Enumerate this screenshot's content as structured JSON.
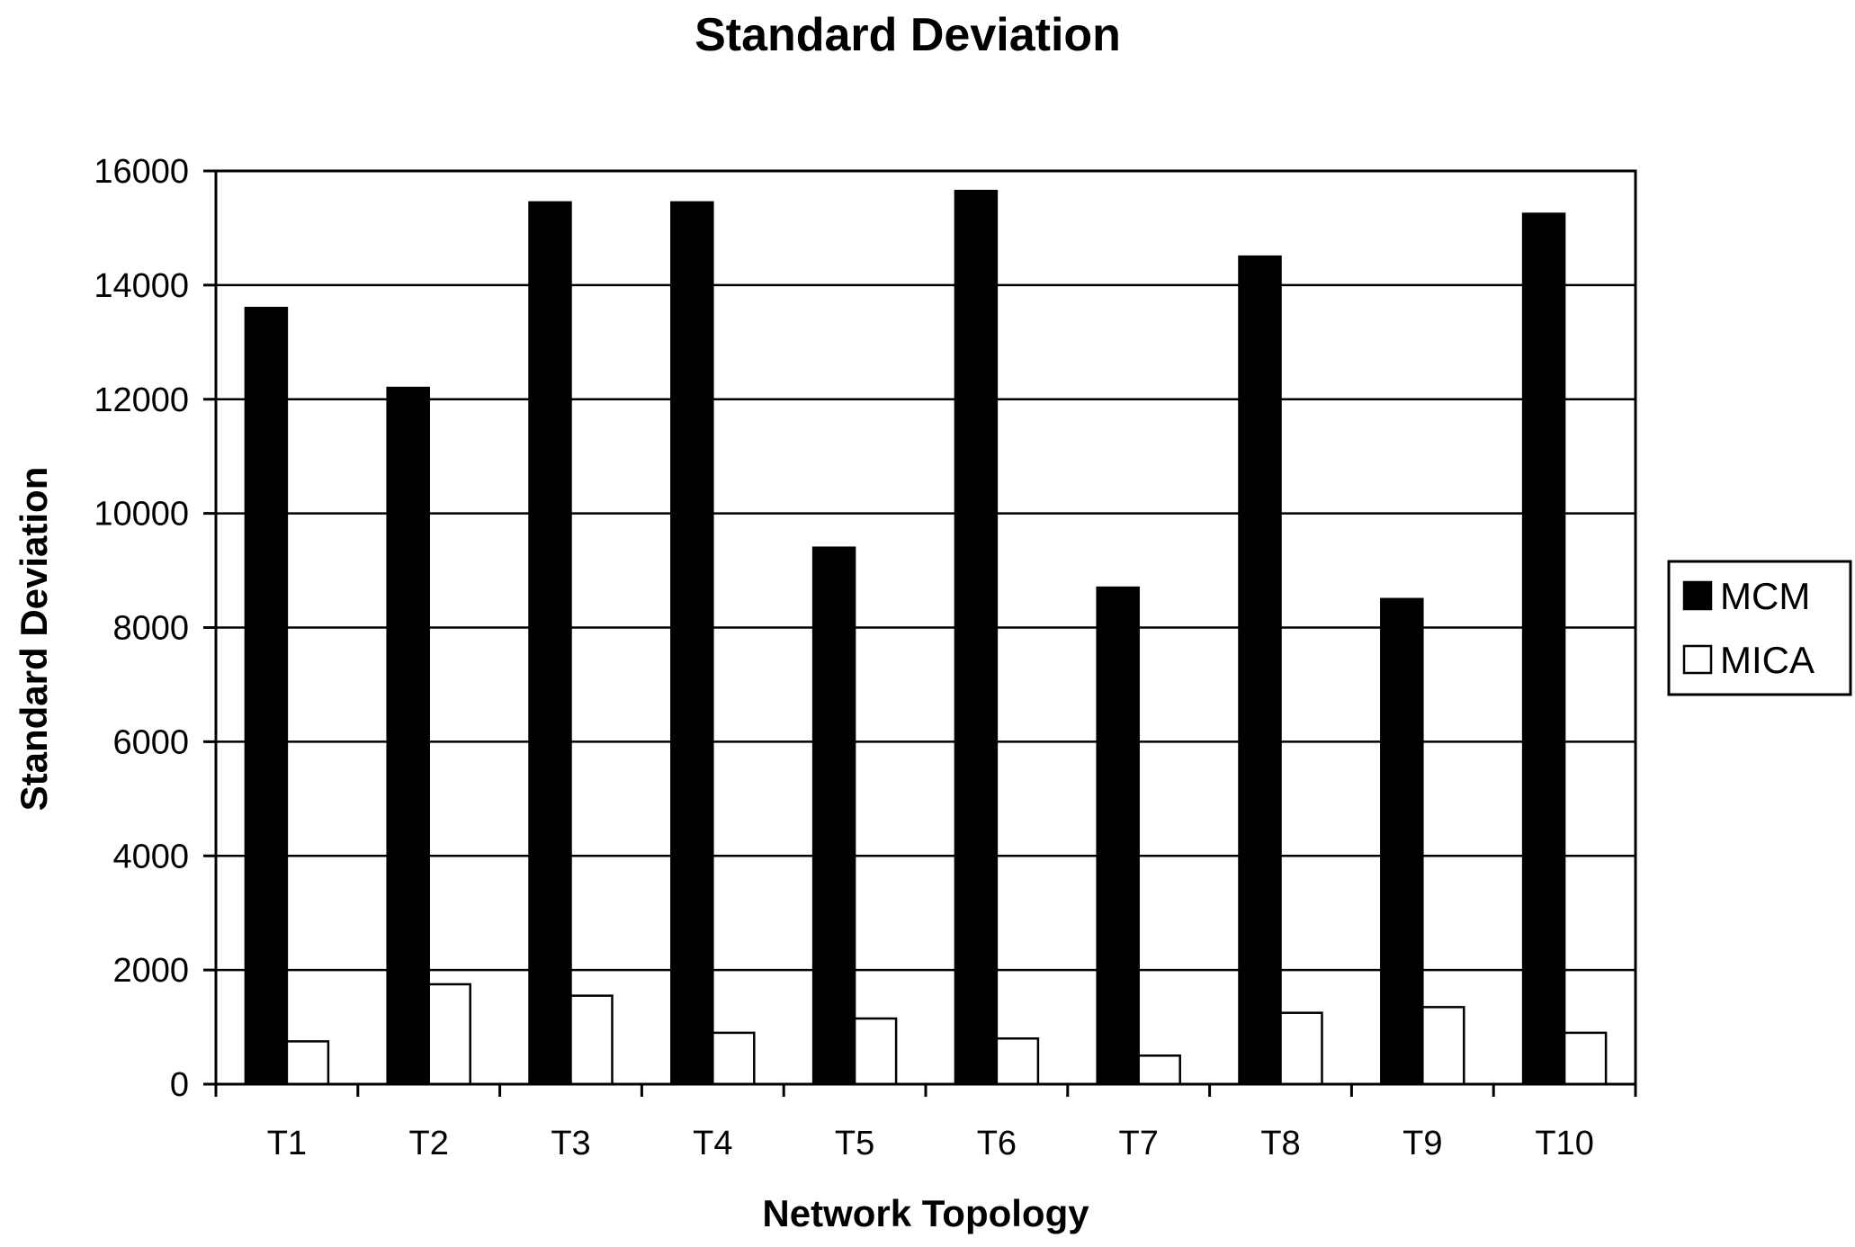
{
  "chart_data": {
    "type": "bar",
    "title": "Standard Deviation",
    "xlabel": "Network Topology",
    "ylabel": "Standard Deviation",
    "categories": [
      "T1",
      "T2",
      "T3",
      "T4",
      "T5",
      "T6",
      "T7",
      "T8",
      "T9",
      "T10"
    ],
    "series": [
      {
        "name": "MCM",
        "color": "#000000",
        "values": [
          13600,
          12200,
          15450,
          15450,
          9400,
          15650,
          8700,
          14500,
          8500,
          15250
        ]
      },
      {
        "name": "MICA",
        "color": "#ffffff",
        "values": [
          750,
          1750,
          1550,
          900,
          1150,
          800,
          500,
          1250,
          1350,
          900
        ]
      }
    ],
    "ylim": [
      0,
      16000
    ],
    "yticks": [
      0,
      2000,
      4000,
      6000,
      8000,
      10000,
      12000,
      14000,
      16000
    ],
    "grid": true,
    "legend": "right"
  }
}
